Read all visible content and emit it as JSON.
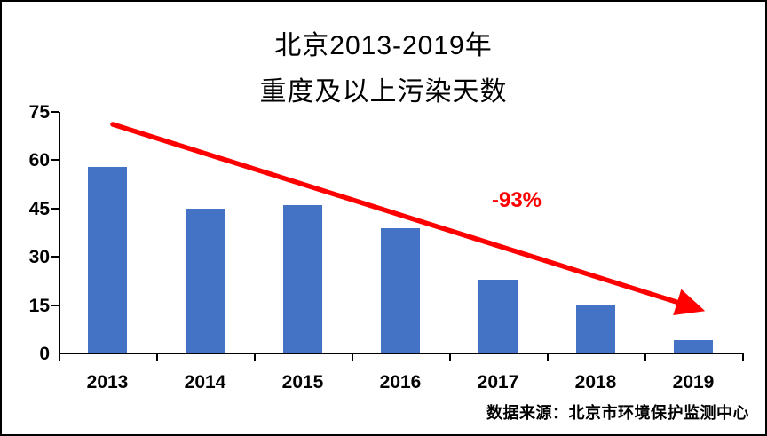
{
  "chart_data": {
    "type": "bar",
    "title_line1": "北京2013-2019年",
    "title_line2": "重度及以上污染天数",
    "categories": [
      "2013",
      "2014",
      "2015",
      "2016",
      "2017",
      "2018",
      "2019"
    ],
    "values": [
      58,
      45,
      46,
      39,
      23,
      15,
      4
    ],
    "y_ticks": [
      75,
      60,
      45,
      30,
      15,
      0
    ],
    "ylim": [
      0,
      75
    ],
    "xlabel": "",
    "ylabel": "",
    "grid": false,
    "legend": false,
    "annotation": "-93%",
    "source": "数据来源：北京市环境保护监测中心",
    "bar_color": "#4472C4",
    "arrow_color": "#FF0000",
    "axis_color": "#000000"
  }
}
